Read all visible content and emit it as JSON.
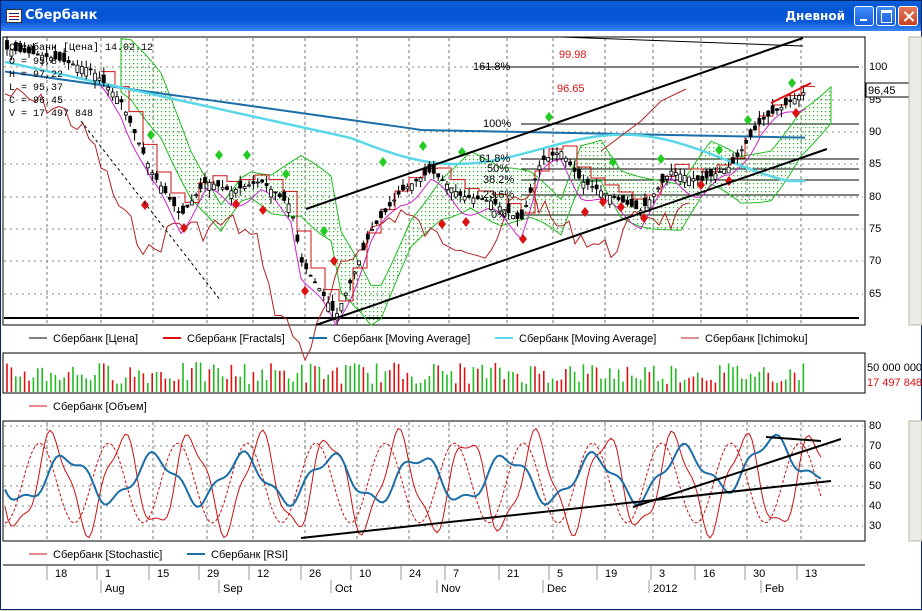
{
  "window": {
    "title": "Сбербанк",
    "timeframe": "Дневной"
  },
  "info_box": [
    "Сбербанк [Цена] 14.02.12",
    "O = 95,8",
    "H = 97,22",
    "L = 95,37",
    "C = 96,45",
    "V = 17 497 848"
  ],
  "price_axis": {
    "ticks": [
      "100",
      "95",
      "90",
      "85",
      "80",
      "75",
      "70",
      "65"
    ],
    "last_price": "96,45"
  },
  "fib_levels": {
    "l1618": "161.8%",
    "l100": "100%",
    "l618": "61.8%",
    "l50": "50%",
    "l382": "38.2%",
    "l236": "23.6%",
    "l0": "0%"
  },
  "target_labels": {
    "upper": "99.98",
    "lower": "96.65"
  },
  "legend_main": [
    "Сбербанк [Цена]",
    "Сбербанк [Fractals]",
    "Сбербанк [Moving Average]",
    "Сбербанк [Moving Average]",
    "Сбербанк [Ichimoku]"
  ],
  "volume": {
    "axis_label": "50 000 000",
    "last_value": "17 497 848",
    "legend": "Сбербанк [Объем]"
  },
  "oscillator": {
    "ticks": [
      "80",
      "70",
      "60",
      "50",
      "40",
      "30"
    ],
    "legend": [
      "Сбербанк [Stochastic]",
      "Сбербанк [RSI]"
    ]
  },
  "time_axis": {
    "days": [
      "18",
      "1",
      "15",
      "29",
      "12",
      "26",
      "10",
      "24",
      "7",
      "21",
      "5",
      "19",
      "3",
      "16",
      "30",
      "13"
    ],
    "months": [
      "Aug",
      "Sep",
      "Oct",
      "Nov",
      "Dec",
      "2012",
      "Feb"
    ]
  },
  "colors": {
    "price": "#000000",
    "fractal_up": "#22cc22",
    "fractal_down": "#dd1111",
    "ma_slow": "#1b6ea8",
    "ma_fast": "#5ad8e8",
    "ichimoku": "#b22222",
    "stochastic": "#cc1111",
    "rsi": "#1b6ea8",
    "volume": "#22bb22"
  }
}
